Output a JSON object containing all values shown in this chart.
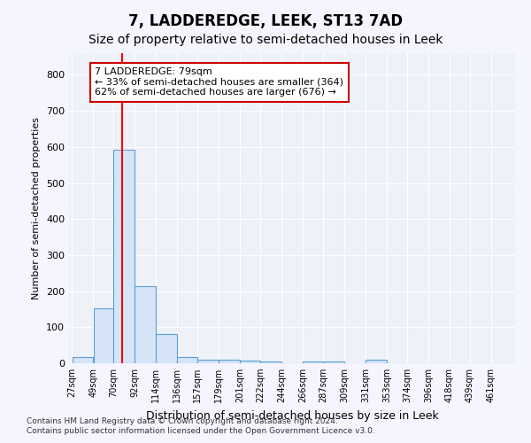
{
  "title": "7, LADDEREDGE, LEEK, ST13 7AD",
  "subtitle": "Size of property relative to semi-detached houses in Leek",
  "xlabel": "Distribution of semi-detached houses by size in Leek",
  "ylabel": "Number of semi-detached properties",
  "footnote1": "Contains HM Land Registry data © Crown copyright and database right 2024.",
  "footnote2": "Contains public sector information licensed under the Open Government Licence v3.0.",
  "categories": [
    "27sqm",
    "49sqm",
    "70sqm",
    "92sqm",
    "114sqm",
    "136sqm",
    "157sqm",
    "179sqm",
    "201sqm",
    "222sqm",
    "244sqm",
    "266sqm",
    "287sqm",
    "309sqm",
    "331sqm",
    "353sqm",
    "374sqm",
    "396sqm",
    "418sqm",
    "439sqm",
    "461sqm"
  ],
  "values": [
    18,
    153,
    593,
    215,
    80,
    18,
    10,
    10,
    8,
    5,
    0,
    5,
    5,
    0,
    10,
    0,
    0,
    0,
    0,
    0,
    0
  ],
  "bar_color": "#d6e4f7",
  "bar_edge_color": "#5a9fd4",
  "bin_edges": [
    27,
    49,
    70,
    92,
    114,
    136,
    157,
    179,
    201,
    222,
    244,
    266,
    287,
    309,
    331,
    353,
    374,
    396,
    418,
    439,
    461,
    483
  ],
  "property_sqm": 79,
  "annotation_line1": "7 LADDEREDGE: 79sqm",
  "annotation_line2": "← 33% of semi-detached houses are smaller (364)",
  "annotation_line3": "62% of semi-detached houses are larger (676) →",
  "ylim": [
    0,
    860
  ],
  "yticks": [
    0,
    100,
    200,
    300,
    400,
    500,
    600,
    700,
    800
  ],
  "bg_color": "#eef2f8",
  "fig_bg_color": "#f5f5ff",
  "grid_color": "#ffffff",
  "title_fontsize": 12,
  "subtitle_fontsize": 10,
  "annotation_box_color": "#ffffff",
  "annotation_border_color": "#cc0000"
}
